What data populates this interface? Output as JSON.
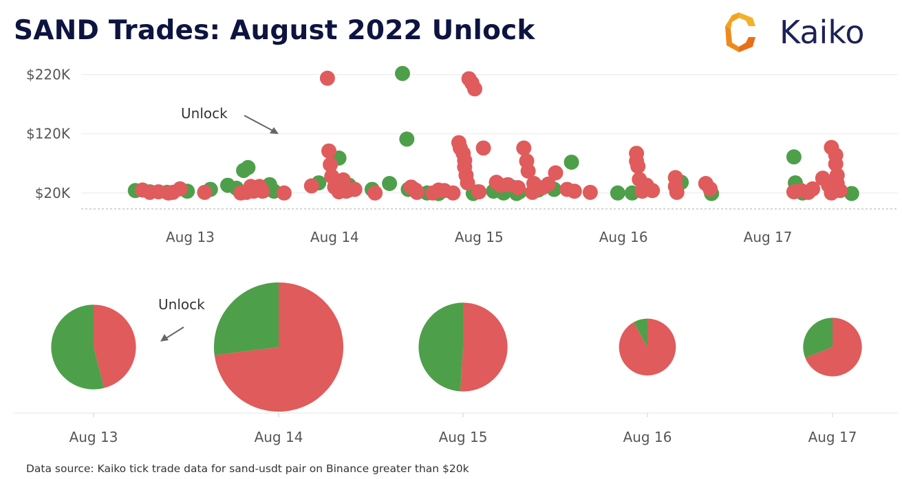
{
  "header": {
    "title": "SAND Trades: August 2022 Unlock",
    "brand": "Kaiko"
  },
  "footer": {
    "source": "Data source: Kaiko tick trade data for sand-usdt pair on Binance greater than $20k"
  },
  "colors": {
    "buy": "#4e9f4a",
    "sell": "#e05b5b",
    "axis_text": "#555555",
    "grid": "#e8e8e8",
    "title": "#0d1440",
    "logo_orange": "#f4a21e",
    "logo_navy": "#1c2157"
  },
  "chart_data": [
    {
      "type": "scatter",
      "title": "",
      "xlabel": "",
      "ylabel": "",
      "y_tick_labels": [
        "$20K",
        "$120K",
        "$220K"
      ],
      "y_ticks": [
        20,
        120,
        220
      ],
      "ylim": [
        0,
        230
      ],
      "x_tick_labels": [
        "Aug 13",
        "Aug 14",
        "Aug 15",
        "Aug 16",
        "Aug 17"
      ],
      "x_ticks": [
        13,
        14,
        15,
        16,
        17
      ],
      "xlim": [
        12.35,
        17.9
      ],
      "grid": true,
      "annotation": "Unlock",
      "series": [
        {
          "color": "#4e9f4a",
          "x": [
            12.62,
            12.72,
            12.84,
            12.98,
            13.14,
            13.26,
            13.32,
            13.37,
            13.4,
            13.51,
            13.55,
            13.58,
            13.89,
            14.03,
            14.1,
            14.26,
            14.38,
            14.47,
            14.5,
            14.51,
            14.64,
            14.72,
            14.96,
            14.99,
            15.1,
            15.17,
            15.23,
            15.26,
            15.28,
            15.41,
            15.52,
            15.64,
            15.96,
            16.06,
            16.4,
            16.61,
            17.18,
            17.19,
            17.24,
            17.58
          ],
          "y": [
            24,
            22,
            21,
            23,
            26,
            33,
            28,
            58,
            63,
            24,
            34,
            23,
            37,
            79,
            33,
            26,
            36,
            222,
            111,
            26,
            20,
            19,
            19,
            22,
            23,
            20,
            30,
            19,
            22,
            25,
            26,
            72,
            20,
            20,
            38,
            19,
            81,
            37,
            20,
            19
          ]
        },
        {
          "color": "#e05b5b",
          "x": [
            12.67,
            12.72,
            12.78,
            12.85,
            12.88,
            12.93,
            13.1,
            13.35,
            13.39,
            13.42,
            13.44,
            13.48,
            13.5,
            13.65,
            13.84,
            13.95,
            13.96,
            13.97,
            13.98,
            14.0,
            14.03,
            14.06,
            14.08,
            14.1,
            14.14,
            14.28,
            14.53,
            14.56,
            14.57,
            14.68,
            14.72,
            14.76,
            14.82,
            14.86,
            14.87,
            14.89,
            14.9,
            14.9,
            14.91,
            14.92,
            14.93,
            14.95,
            14.97,
            15.0,
            15.03,
            15.12,
            15.15,
            15.2,
            15.27,
            15.31,
            15.33,
            15.34,
            15.37,
            15.38,
            15.44,
            15.48,
            15.53,
            15.61,
            15.66,
            15.77,
            16.09,
            16.09,
            16.1,
            16.11,
            16.13,
            16.16,
            16.2,
            16.36,
            16.36,
            16.37,
            16.57,
            16.6,
            17.18,
            17.23,
            17.28,
            17.31,
            17.38,
            17.42,
            17.44,
            17.44,
            17.47,
            17.47,
            17.48,
            17.48,
            17.5
          ],
          "y": [
            25,
            21,
            22,
            20,
            21,
            27,
            21,
            20,
            21,
            31,
            23,
            31,
            23,
            20,
            32,
            214,
            91,
            68,
            48,
            30,
            22,
            42,
            23,
            25,
            26,
            20,
            30,
            25,
            21,
            20,
            25,
            24,
            20,
            105,
            96,
            87,
            75,
            64,
            50,
            37,
            213,
            206,
            196,
            22,
            96,
            38,
            33,
            34,
            29,
            96,
            74,
            57,
            21,
            36,
            29,
            35,
            54,
            26,
            23,
            21,
            87,
            74,
            65,
            43,
            23,
            33,
            24,
            46,
            31,
            21,
            36,
            27,
            22,
            24,
            21,
            27,
            45,
            33,
            20,
            97,
            84,
            69,
            50,
            36,
            24
          ]
        }
      ]
    },
    {
      "type": "pie",
      "title": "",
      "annotation": "Unlock",
      "categories": [
        "Aug 13",
        "Aug 14",
        "Aug 15",
        "Aug 16",
        "Aug 17"
      ],
      "legend": [],
      "total_scale": [
        1.0,
        2.33,
        1.1,
        0.45,
        0.48
      ],
      "series": [
        {
          "color": "#4e9f4a",
          "values": [
            0.54,
            0.27,
            0.49,
            0.08,
            0.31
          ]
        },
        {
          "color": "#e05b5b",
          "values": [
            0.46,
            0.73,
            0.51,
            0.92,
            0.69
          ]
        }
      ]
    }
  ]
}
